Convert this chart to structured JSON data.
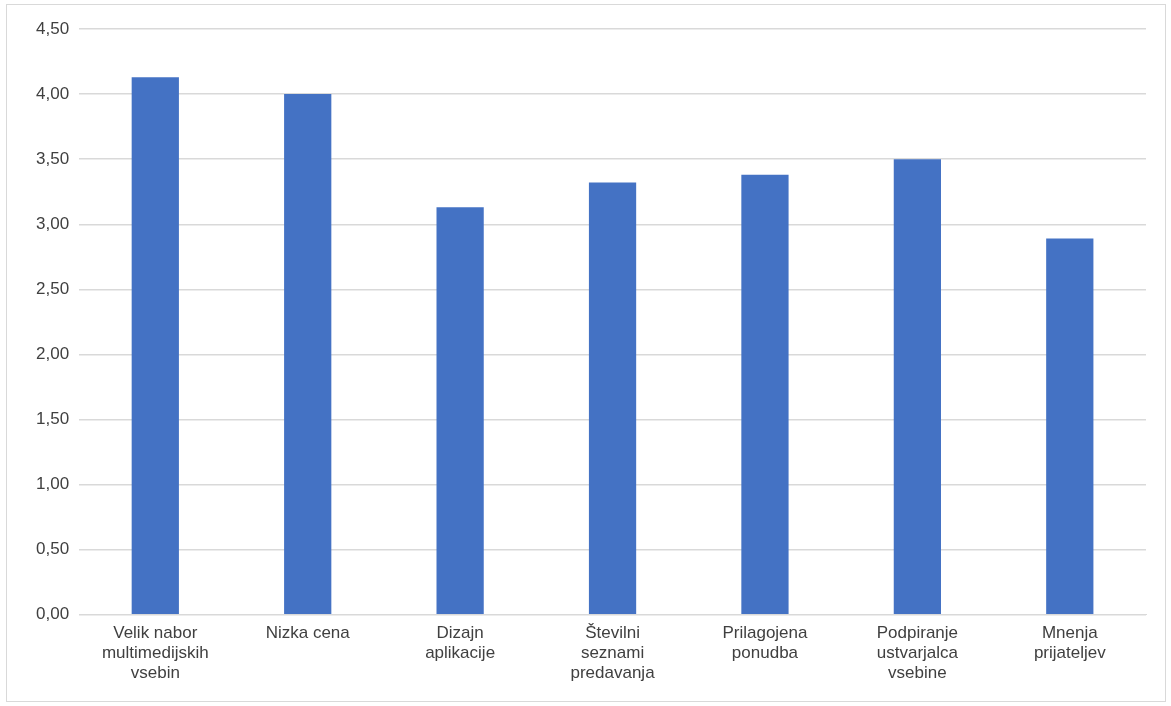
{
  "chart_data": {
    "type": "bar",
    "categories": [
      "Velik nabor multimedijskih vsebin",
      "Nizka cena",
      "Dizajn aplikacije",
      "Številni seznami predavanja",
      "Prilagojena ponudba",
      "Podpiranje ustvarjalca vsebine",
      "Mnenja prijateljev"
    ],
    "values": [
      4.13,
      4.0,
      3.13,
      3.32,
      3.38,
      3.5,
      2.89
    ],
    "color": "#4472c4",
    "ylim": [
      0,
      4.5
    ],
    "yticks": [
      {
        "value": 0,
        "label": "0,00"
      },
      {
        "value": 0.5,
        "label": "0,50"
      },
      {
        "value": 1,
        "label": "1,00"
      },
      {
        "value": 1.5,
        "label": "1,50"
      },
      {
        "value": 2,
        "label": "2,00"
      },
      {
        "value": 2.5,
        "label": "2,50"
      },
      {
        "value": 3,
        "label": "3,00"
      },
      {
        "value": 3.5,
        "label": "3,50"
      },
      {
        "value": 4,
        "label": "4,00"
      },
      {
        "value": 4.5,
        "label": "4,50"
      }
    ],
    "grid": "y",
    "legend": false
  }
}
